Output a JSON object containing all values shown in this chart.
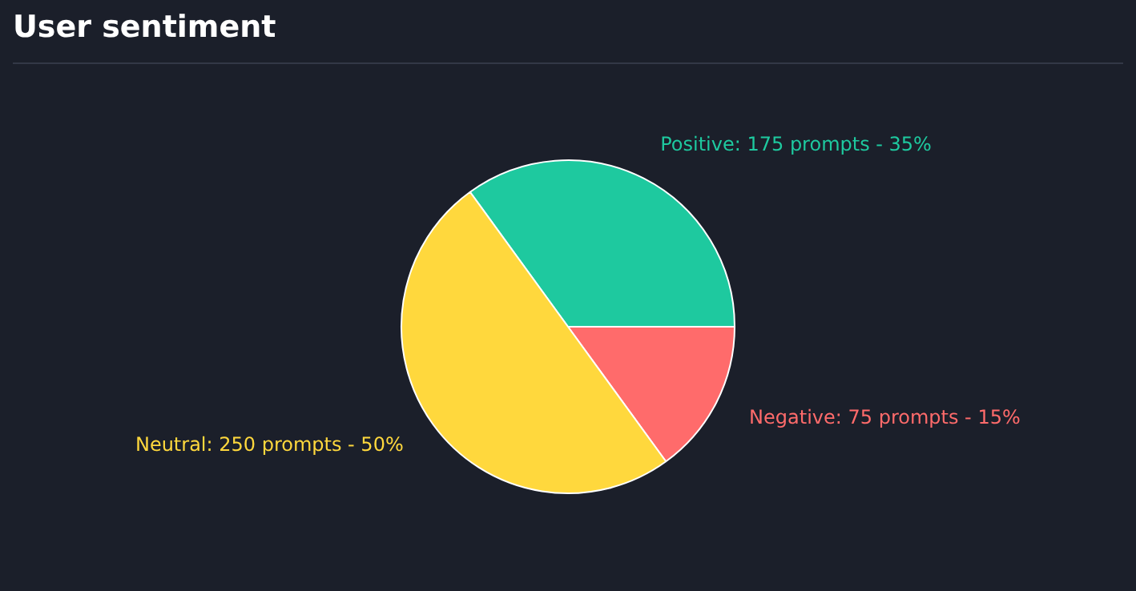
{
  "chart_data": {
    "type": "pie",
    "title": "User sentiment",
    "categories": [
      "Positive",
      "Negative",
      "Neutral"
    ],
    "values": [
      175,
      75,
      250
    ],
    "colors": [
      "#1ec99f",
      "#ff6b6b",
      "#ffd83d"
    ],
    "value_labels": [
      "175 prompts - 35%",
      "75 prompts - 15%",
      "250 prompts - 50%"
    ],
    "legend": false
  }
}
